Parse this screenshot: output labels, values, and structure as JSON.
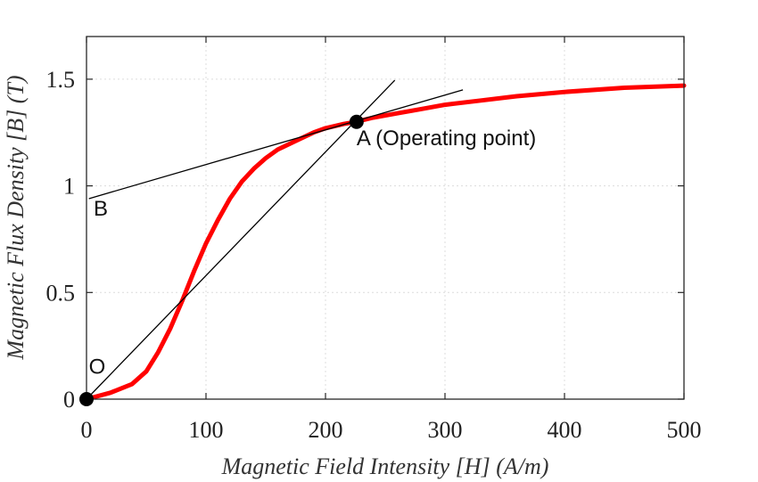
{
  "chart_data": {
    "type": "line",
    "xlabel": "Magnetic Field Intensity [H] (A/m)",
    "ylabel": "Magnetic Flux Density [B] (T)",
    "xlim": [
      0,
      500
    ],
    "ylim": [
      0,
      1.7
    ],
    "xticks": [
      0,
      100,
      200,
      300,
      400,
      500
    ],
    "yticks": [
      0,
      0.5,
      1,
      1.5
    ],
    "xtick_labels": [
      "0",
      "100",
      "200",
      "300",
      "400",
      "500"
    ],
    "ytick_labels": [
      "0",
      "0.5",
      "1",
      "1.5"
    ],
    "grid": true,
    "series": [
      {
        "color": "#ff0000",
        "x": [
          0,
          20,
          38,
          50,
          60,
          70,
          80,
          90,
          100,
          110,
          120,
          130,
          140,
          150,
          160,
          175,
          190,
          200,
          215,
          225,
          240,
          260,
          280,
          300,
          330,
          360,
          400,
          450,
          500
        ],
        "y": [
          0,
          0.03,
          0.07,
          0.13,
          0.22,
          0.33,
          0.46,
          0.6,
          0.73,
          0.84,
          0.94,
          1.02,
          1.08,
          1.13,
          1.17,
          1.21,
          1.25,
          1.27,
          1.29,
          1.3,
          1.32,
          1.34,
          1.36,
          1.38,
          1.4,
          1.42,
          1.44,
          1.46,
          1.47
        ]
      }
    ],
    "lines": [
      {
        "x": [
          0,
          258
        ],
        "y": [
          0,
          1.495
        ],
        "color": "#000000"
      },
      {
        "x": [
          2,
          315
        ],
        "y": [
          0.94,
          1.45
        ],
        "color": "#000000"
      }
    ],
    "points": [
      {
        "x": 0,
        "y": 0,
        "label": "O"
      },
      {
        "x": 226,
        "y": 1.3,
        "label": "A (Operating point)"
      }
    ],
    "annotations": [
      {
        "text": "O",
        "x": 2,
        "y": 0.12
      },
      {
        "text": "A (Operating point)",
        "x": 226,
        "y": 1.19
      },
      {
        "text": "B",
        "x": 6,
        "y": 0.86
      }
    ]
  }
}
